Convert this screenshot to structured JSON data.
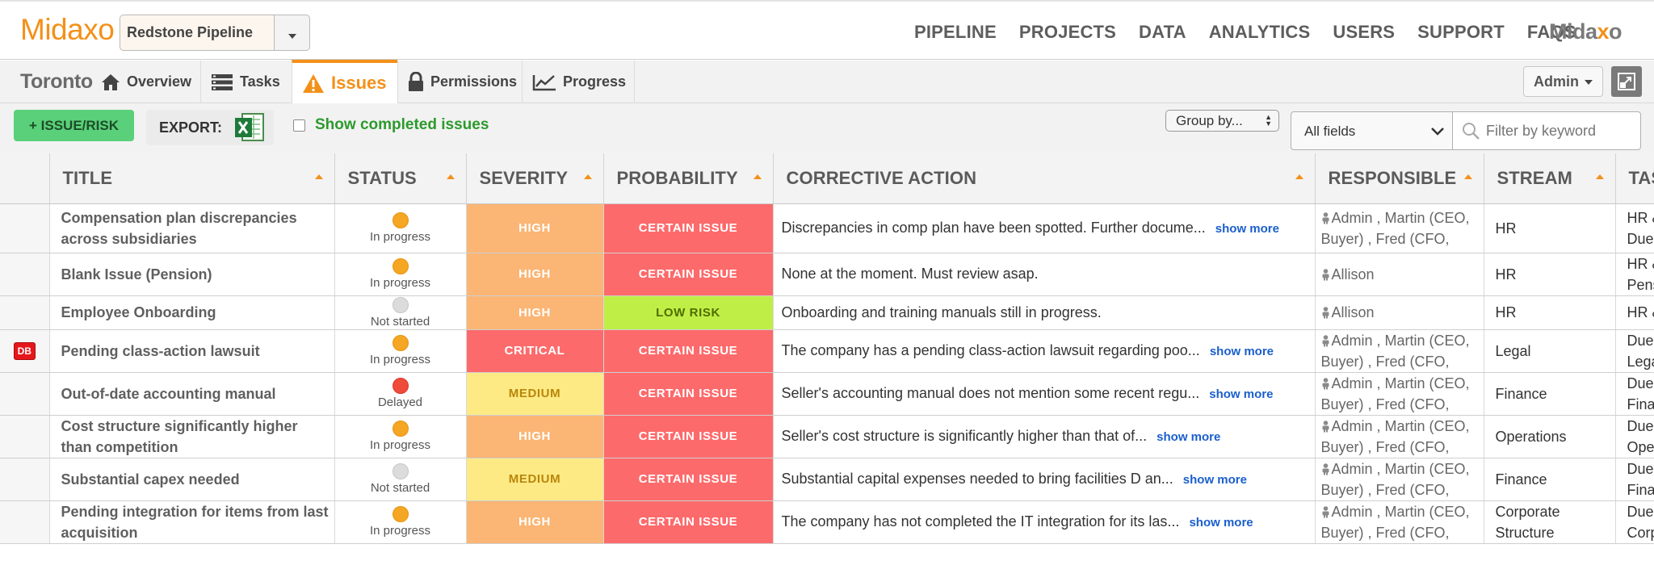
{
  "brand": {
    "name": "Midaxo",
    "right_logo_prefix": "Mida",
    "right_logo_x": "x",
    "right_logo_suffix": "o",
    "accent": "#f39019"
  },
  "pipeline_select": {
    "value": "Redstone Pipeline"
  },
  "nav": [
    "PIPELINE",
    "PROJECTS",
    "DATA",
    "ANALYTICS",
    "USERS",
    "SUPPORT",
    "FAQS"
  ],
  "project": {
    "name": "Toronto"
  },
  "tabs": [
    {
      "label": "Overview",
      "icon": "home-icon"
    },
    {
      "label": "Tasks",
      "icon": "tasks-icon"
    },
    {
      "label": "Issues",
      "icon": "warning-icon",
      "active": true
    },
    {
      "label": "Permissions",
      "icon": "lock-icon"
    },
    {
      "label": "Progress",
      "icon": "chart-icon"
    }
  ],
  "user_menu": {
    "label": "Admin"
  },
  "toolbar": {
    "add_label": "+ ISSUE/RISK",
    "export_label": "EXPORT:",
    "show_completed_label": "Show completed issues",
    "group_by_label": "Group by...",
    "fields_select": "All fields",
    "filter_placeholder": "Filter by keyword"
  },
  "columns": [
    "TITLE",
    "STATUS",
    "SEVERITY",
    "PROBABILITY",
    "CORRECTIVE ACTION",
    "RESPONSIBLE",
    "STREAM",
    "TASK"
  ],
  "rows": [
    {
      "flag": "",
      "title": "Compensation plan discrepancies across subsidiaries",
      "status": "In progress",
      "status_kind": "prog",
      "severity": "HIGH",
      "sev_kind": "high",
      "probability": "CERTAIN ISSUE",
      "prob_kind": "certain",
      "action": "Discrepancies in comp plan have been spotted. Further docume...",
      "show_more": "show more",
      "responsible": "Admin , Martin (CEO, Buyer) , Fred (CFO,",
      "stream": "HR",
      "task": "HR & R\nDue Di"
    },
    {
      "flag": "",
      "title": "Blank Issue (Pension)",
      "status": "In progress",
      "status_kind": "prog",
      "severity": "HIGH",
      "sev_kind": "high",
      "probability": "CERTAIN ISSUE",
      "prob_kind": "certain",
      "action": "None at the moment. Must review asap.",
      "show_more": "",
      "responsible": "Allison",
      "stream": "HR",
      "task": "HR & R\nPensic"
    },
    {
      "flag": "",
      "title": "Employee Onboarding",
      "status": "Not started",
      "status_kind": "not",
      "severity": "HIGH",
      "sev_kind": "high",
      "probability": "LOW RISK",
      "prob_kind": "low",
      "action": "Onboarding and training manuals still in progress.",
      "show_more": "",
      "responsible": "Allison",
      "stream": "HR",
      "task": "HR & R"
    },
    {
      "flag": "DB",
      "title": "Pending class-action lawsuit",
      "status": "In progress",
      "status_kind": "prog",
      "severity": "CRITICAL",
      "sev_kind": "critical",
      "probability": "CERTAIN ISSUE",
      "prob_kind": "certain",
      "action": "The company has a pending class-action lawsuit regarding poo...",
      "show_more": "show more",
      "responsible": "Admin , Martin (CEO, Buyer) , Fred (CFO,",
      "stream": "Legal",
      "task": "Due Di\nLegal I"
    },
    {
      "flag": "",
      "title": "Out-of-date accounting manual",
      "status": "Delayed",
      "status_kind": "delay",
      "severity": "MEDIUM",
      "sev_kind": "medium",
      "probability": "CERTAIN ISSUE",
      "prob_kind": "certain",
      "action": "Seller's accounting manual does not mention some recent regu...",
      "show_more": "show more",
      "responsible": "Admin , Martin (CEO, Buyer) , Fred (CFO,",
      "stream": "Finance",
      "task": "Due Di\nFinanc"
    },
    {
      "flag": "",
      "title": "Cost structure significantly higher than competition",
      "status": "In progress",
      "status_kind": "prog",
      "severity": "HIGH",
      "sev_kind": "high",
      "probability": "CERTAIN ISSUE",
      "prob_kind": "certain",
      "action": "Seller's cost structure is significantly higher than that of...",
      "show_more": "show more",
      "responsible": "Admin , Martin (CEO, Buyer) , Fred (CFO,",
      "stream": "Operations",
      "task": "Due Di\nOperat"
    },
    {
      "flag": "",
      "title": "Substantial capex needed",
      "status": "Not started",
      "status_kind": "not",
      "severity": "MEDIUM",
      "sev_kind": "medium",
      "probability": "CERTAIN ISSUE",
      "prob_kind": "certain",
      "action": "Substantial capital expenses needed to bring facilities D an...",
      "show_more": "show more",
      "responsible": "Admin , Martin (CEO, Buyer) , Fred (CFO,",
      "stream": "Finance",
      "task": "Due Di\nFinanc"
    },
    {
      "flag": "",
      "title": "Pending integration for items from last acquisition",
      "status": "In progress",
      "status_kind": "prog",
      "severity": "HIGH",
      "sev_kind": "high",
      "probability": "CERTAIN ISSUE",
      "prob_kind": "certain",
      "action": "The company has not completed the IT integration for its las...",
      "show_more": "show more",
      "responsible": "Admin , Martin (CEO, Buyer) , Fred (CFO,",
      "stream": "Corporate Structure",
      "task": "Due Di\nCorpor"
    }
  ]
}
